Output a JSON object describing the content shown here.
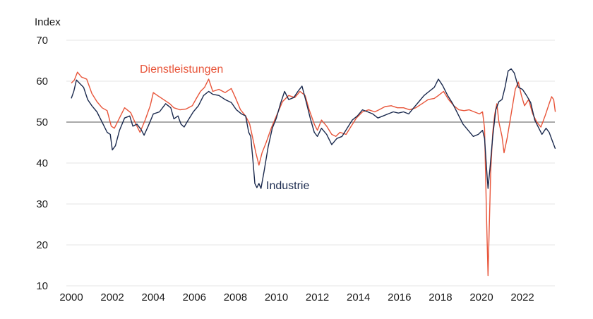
{
  "chart_data": {
    "type": "line",
    "ylabel": "Index",
    "ylim": [
      10,
      70
    ],
    "yticks": [
      10,
      20,
      30,
      40,
      50,
      60,
      70
    ],
    "xlim": [
      2000,
      2023.6
    ],
    "xticks": [
      "2000",
      "2002",
      "2004",
      "2006",
      "2008",
      "2010",
      "2012",
      "2014",
      "2016",
      "2018",
      "2020",
      "2022"
    ],
    "reference_line": 50,
    "grid": true,
    "series": [
      {
        "name": "Dienstleistungen",
        "color": "#e8553a",
        "points": [
          [
            2000.0,
            59.5
          ],
          [
            2000.15,
            60.3
          ],
          [
            2000.3,
            62.2
          ],
          [
            2000.5,
            61.0
          ],
          [
            2000.75,
            60.5
          ],
          [
            2001.0,
            57.0
          ],
          [
            2001.25,
            55.0
          ],
          [
            2001.5,
            53.5
          ],
          [
            2001.75,
            52.8
          ],
          [
            2001.95,
            49.0
          ],
          [
            2002.1,
            48.5
          ],
          [
            2002.3,
            50.5
          ],
          [
            2002.6,
            53.5
          ],
          [
            2002.9,
            52.3
          ],
          [
            2003.1,
            50.0
          ],
          [
            2003.35,
            47.5
          ],
          [
            2003.6,
            50.5
          ],
          [
            2003.85,
            54.0
          ],
          [
            2004.0,
            57.2
          ],
          [
            2004.2,
            56.5
          ],
          [
            2004.5,
            55.5
          ],
          [
            2004.8,
            54.5
          ],
          [
            2005.0,
            53.5
          ],
          [
            2005.3,
            53.0
          ],
          [
            2005.6,
            53.2
          ],
          [
            2005.9,
            54.0
          ],
          [
            2006.1,
            55.8
          ],
          [
            2006.3,
            57.5
          ],
          [
            2006.5,
            58.5
          ],
          [
            2006.7,
            60.5
          ],
          [
            2006.9,
            57.5
          ],
          [
            2007.2,
            58.0
          ],
          [
            2007.5,
            57.2
          ],
          [
            2007.8,
            58.2
          ],
          [
            2008.0,
            56.0
          ],
          [
            2008.25,
            53.0
          ],
          [
            2008.5,
            51.5
          ],
          [
            2008.7,
            49.5
          ],
          [
            2008.85,
            46.0
          ],
          [
            2009.0,
            42.5
          ],
          [
            2009.15,
            39.5
          ],
          [
            2009.3,
            42.5
          ],
          [
            2009.5,
            45.0
          ],
          [
            2009.75,
            48.5
          ],
          [
            2010.0,
            51.5
          ],
          [
            2010.3,
            55.0
          ],
          [
            2010.6,
            56.5
          ],
          [
            2010.9,
            56.0
          ],
          [
            2011.15,
            57.5
          ],
          [
            2011.4,
            56.5
          ],
          [
            2011.6,
            53.0
          ],
          [
            2011.85,
            49.5
          ],
          [
            2012.0,
            48.0
          ],
          [
            2012.2,
            50.5
          ],
          [
            2012.45,
            49.0
          ],
          [
            2012.7,
            47.0
          ],
          [
            2012.9,
            46.5
          ],
          [
            2013.1,
            47.5
          ],
          [
            2013.4,
            47.0
          ],
          [
            2013.65,
            49.0
          ],
          [
            2013.9,
            51.0
          ],
          [
            2014.2,
            52.5
          ],
          [
            2014.5,
            53.0
          ],
          [
            2014.8,
            52.5
          ],
          [
            2015.0,
            53.0
          ],
          [
            2015.3,
            53.8
          ],
          [
            2015.6,
            54.0
          ],
          [
            2015.9,
            53.5
          ],
          [
            2016.2,
            53.5
          ],
          [
            2016.5,
            53.0
          ],
          [
            2016.8,
            53.5
          ],
          [
            2017.1,
            54.5
          ],
          [
            2017.4,
            55.5
          ],
          [
            2017.7,
            55.8
          ],
          [
            2017.9,
            56.5
          ],
          [
            2018.15,
            57.5
          ],
          [
            2018.4,
            55.5
          ],
          [
            2018.65,
            54.0
          ],
          [
            2018.9,
            53.0
          ],
          [
            2019.15,
            52.8
          ],
          [
            2019.4,
            53.0
          ],
          [
            2019.65,
            52.5
          ],
          [
            2019.9,
            52.0
          ],
          [
            2020.05,
            52.5
          ],
          [
            2020.15,
            48.5
          ],
          [
            2020.25,
            26.0
          ],
          [
            2020.32,
            12.5
          ],
          [
            2020.45,
            38.0
          ],
          [
            2020.55,
            47.5
          ],
          [
            2020.65,
            52.0
          ],
          [
            2020.75,
            54.5
          ],
          [
            2020.85,
            50.0
          ],
          [
            2021.0,
            46.5
          ],
          [
            2021.1,
            42.5
          ],
          [
            2021.25,
            46.0
          ],
          [
            2021.45,
            52.0
          ],
          [
            2021.65,
            58.0
          ],
          [
            2021.8,
            59.8
          ],
          [
            2021.95,
            56.5
          ],
          [
            2022.1,
            54.0
          ],
          [
            2022.3,
            55.5
          ],
          [
            2022.5,
            52.0
          ],
          [
            2022.7,
            50.0
          ],
          [
            2022.9,
            48.8
          ],
          [
            2023.1,
            51.5
          ],
          [
            2023.3,
            54.5
          ],
          [
            2023.42,
            56.2
          ],
          [
            2023.52,
            55.5
          ],
          [
            2023.6,
            52.5
          ]
        ]
      },
      {
        "name": "Industrie",
        "color": "#1b2a4e",
        "points": [
          [
            2000.0,
            55.8
          ],
          [
            2000.12,
            57.5
          ],
          [
            2000.25,
            60.3
          ],
          [
            2000.4,
            59.5
          ],
          [
            2000.6,
            58.5
          ],
          [
            2000.8,
            55.5
          ],
          [
            2001.0,
            54.0
          ],
          [
            2001.25,
            52.5
          ],
          [
            2001.5,
            50.0
          ],
          [
            2001.75,
            47.5
          ],
          [
            2001.9,
            47.0
          ],
          [
            2002.0,
            43.2
          ],
          [
            2002.15,
            44.2
          ],
          [
            2002.35,
            48.0
          ],
          [
            2002.6,
            51.0
          ],
          [
            2002.85,
            51.5
          ],
          [
            2003.0,
            49.0
          ],
          [
            2003.2,
            49.5
          ],
          [
            2003.4,
            48.2
          ],
          [
            2003.55,
            46.8
          ],
          [
            2003.75,
            49.0
          ],
          [
            2004.0,
            52.0
          ],
          [
            2004.3,
            52.5
          ],
          [
            2004.6,
            54.5
          ],
          [
            2004.85,
            53.5
          ],
          [
            2005.0,
            50.8
          ],
          [
            2005.2,
            51.5
          ],
          [
            2005.35,
            49.5
          ],
          [
            2005.5,
            48.8
          ],
          [
            2005.7,
            50.5
          ],
          [
            2005.95,
            52.5
          ],
          [
            2006.2,
            54.0
          ],
          [
            2006.45,
            56.5
          ],
          [
            2006.7,
            57.5
          ],
          [
            2006.9,
            56.8
          ],
          [
            2007.2,
            56.5
          ],
          [
            2007.5,
            55.5
          ],
          [
            2007.8,
            54.8
          ],
          [
            2008.05,
            53.0
          ],
          [
            2008.3,
            52.0
          ],
          [
            2008.5,
            51.5
          ],
          [
            2008.65,
            47.5
          ],
          [
            2008.75,
            46.5
          ],
          [
            2008.85,
            41.0
          ],
          [
            2008.95,
            35.0
          ],
          [
            2009.05,
            34.0
          ],
          [
            2009.15,
            35.0
          ],
          [
            2009.25,
            33.8
          ],
          [
            2009.4,
            38.0
          ],
          [
            2009.6,
            44.0
          ],
          [
            2009.8,
            48.5
          ],
          [
            2010.0,
            51.0
          ],
          [
            2010.2,
            54.5
          ],
          [
            2010.4,
            57.5
          ],
          [
            2010.6,
            55.5
          ],
          [
            2010.85,
            56.0
          ],
          [
            2011.05,
            57.5
          ],
          [
            2011.25,
            58.8
          ],
          [
            2011.45,
            55.0
          ],
          [
            2011.65,
            51.0
          ],
          [
            2011.85,
            47.5
          ],
          [
            2012.0,
            46.5
          ],
          [
            2012.2,
            48.5
          ],
          [
            2012.45,
            47.0
          ],
          [
            2012.7,
            44.5
          ],
          [
            2012.95,
            46.0
          ],
          [
            2013.2,
            46.5
          ],
          [
            2013.45,
            48.5
          ],
          [
            2013.7,
            50.5
          ],
          [
            2013.95,
            51.5
          ],
          [
            2014.2,
            53.0
          ],
          [
            2014.45,
            52.5
          ],
          [
            2014.7,
            52.0
          ],
          [
            2014.95,
            51.0
          ],
          [
            2015.2,
            51.5
          ],
          [
            2015.45,
            52.0
          ],
          [
            2015.7,
            52.5
          ],
          [
            2015.95,
            52.2
          ],
          [
            2016.2,
            52.5
          ],
          [
            2016.45,
            52.0
          ],
          [
            2016.7,
            53.5
          ],
          [
            2016.95,
            55.0
          ],
          [
            2017.2,
            56.5
          ],
          [
            2017.45,
            57.5
          ],
          [
            2017.7,
            58.5
          ],
          [
            2017.9,
            60.5
          ],
          [
            2018.1,
            59.0
          ],
          [
            2018.35,
            56.5
          ],
          [
            2018.6,
            54.5
          ],
          [
            2018.85,
            52.0
          ],
          [
            2019.1,
            49.5
          ],
          [
            2019.35,
            48.0
          ],
          [
            2019.6,
            46.5
          ],
          [
            2019.85,
            47.0
          ],
          [
            2020.05,
            48.0
          ],
          [
            2020.15,
            46.0
          ],
          [
            2020.25,
            38.5
          ],
          [
            2020.32,
            33.8
          ],
          [
            2020.42,
            39.0
          ],
          [
            2020.55,
            46.5
          ],
          [
            2020.7,
            53.0
          ],
          [
            2020.85,
            55.0
          ],
          [
            2021.0,
            55.5
          ],
          [
            2021.15,
            58.5
          ],
          [
            2021.3,
            62.5
          ],
          [
            2021.45,
            63.0
          ],
          [
            2021.6,
            62.0
          ],
          [
            2021.8,
            58.5
          ],
          [
            2022.0,
            58.0
          ],
          [
            2022.2,
            56.5
          ],
          [
            2022.4,
            54.8
          ],
          [
            2022.6,
            50.5
          ],
          [
            2022.8,
            48.5
          ],
          [
            2022.95,
            47.0
          ],
          [
            2023.15,
            48.5
          ],
          [
            2023.3,
            47.5
          ],
          [
            2023.45,
            45.5
          ],
          [
            2023.6,
            43.5
          ]
        ]
      }
    ]
  }
}
